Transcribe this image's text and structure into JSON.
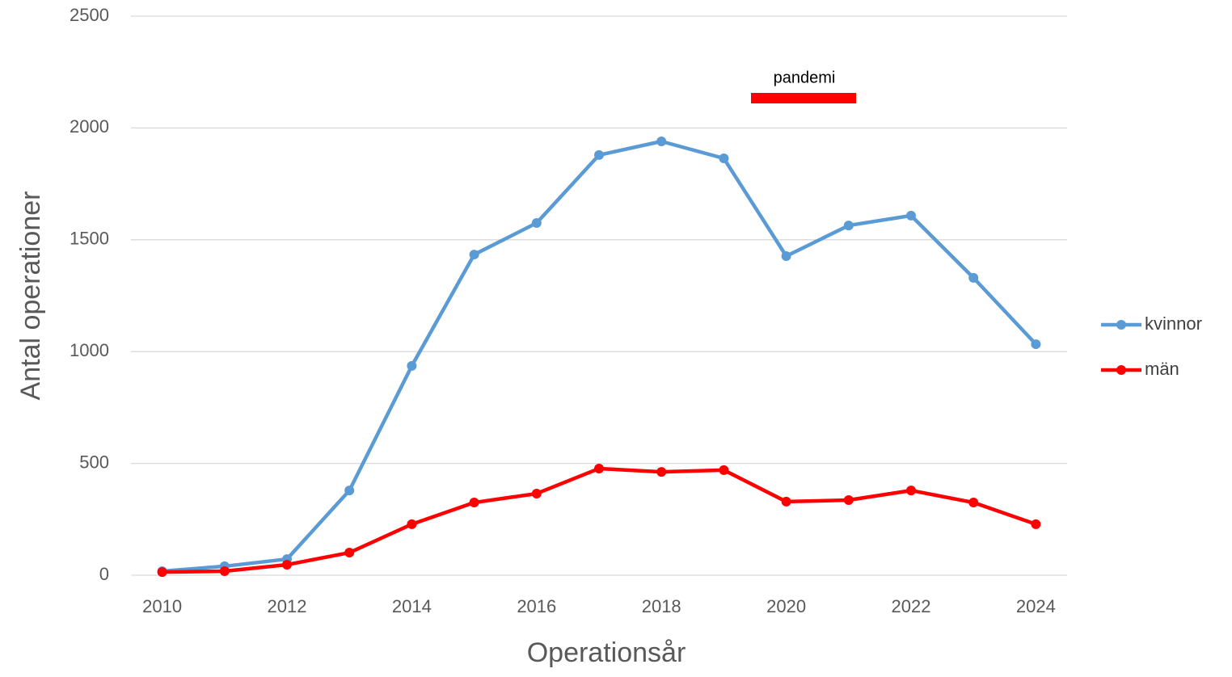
{
  "chart_data": {
    "type": "line",
    "xlabel": "Operationsår",
    "ylabel": "Antal operationer",
    "annotation": "pandemi",
    "x": [
      2010,
      2011,
      2012,
      2013,
      2014,
      2015,
      2016,
      2017,
      2018,
      2019,
      2020,
      2021,
      2022,
      2023,
      2024
    ],
    "series": [
      {
        "name": "kvinnor",
        "color": "#5b9bd5",
        "values": [
          18,
          40,
          72,
          379,
          936,
          1434,
          1575,
          1879,
          1940,
          1864,
          1427,
          1564,
          1608,
          1330,
          1033
        ]
      },
      {
        "name": "män",
        "color": "#ff0000",
        "values": [
          14,
          18,
          47,
          101,
          228,
          325,
          365,
          477,
          462,
          470,
          329,
          336,
          379,
          325,
          228
        ]
      }
    ],
    "xlim": [
      2009.5,
      2024.5
    ],
    "xticks": [
      2010,
      2012,
      2014,
      2016,
      2018,
      2020,
      2022,
      2024
    ],
    "ylim": [
      0,
      2500
    ],
    "yticks": [
      0,
      500,
      1000,
      1500,
      2000,
      2500
    ],
    "grid": true,
    "legend": "right"
  }
}
